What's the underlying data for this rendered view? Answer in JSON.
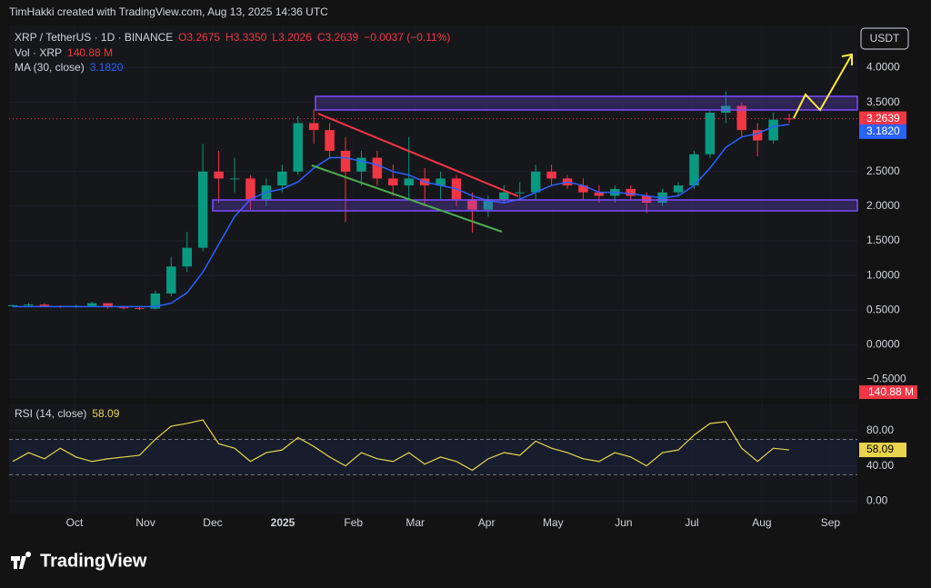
{
  "header": "TimHakki created with TradingView.com, Aug 13, 2025 14:36 UTC",
  "brand": "TradingView",
  "chart_data": [
    {
      "type": "candlestick",
      "title": "XRP / TetherUS · 1D · BINANCE",
      "ohlc_text": [
        "O3.2675",
        "H3.3350",
        "L3.2026",
        "C3.2639",
        "−0.0037 (−0.11%)"
      ],
      "volume_legend": {
        "name": "Vol · XRP",
        "label": "140.88 M"
      },
      "currency": "USDT",
      "categories": [
        null,
        null,
        null,
        null,
        null,
        null,
        null,
        null,
        null,
        null,
        null,
        null,
        null,
        null,
        null,
        null,
        null,
        null,
        null,
        null,
        null,
        null,
        null,
        null,
        null,
        null,
        null,
        null,
        null,
        null,
        null,
        null,
        null,
        null,
        null,
        null,
        null,
        null,
        null,
        null,
        null,
        null,
        null,
        null,
        null,
        null,
        null,
        null,
        null,
        null
      ],
      "xlim": [
        -0.23,
        53.3
      ],
      "xticks": [
        {
          "value": 3.9,
          "label": "Oct"
        },
        {
          "value": 8.38,
          "label": "Nov"
        },
        {
          "value": 12.62,
          "label": "Dec"
        },
        {
          "value": 17.04,
          "label": "2025"
        },
        {
          "value": 21.5,
          "label": "Feb"
        },
        {
          "value": 25.4,
          "label": "Mar"
        },
        {
          "value": 29.9,
          "label": "Apr"
        },
        {
          "value": 34.1,
          "label": "May"
        },
        {
          "value": 38.55,
          "label": "Jun"
        },
        {
          "value": 42.86,
          "label": "Jul"
        },
        {
          "value": 47.27,
          "label": "Aug"
        },
        {
          "value": 51.6,
          "label": "Sep"
        }
      ],
      "ylim": [
        -0.77,
        4.61
      ],
      "yticks": [
        {
          "value": -0.5,
          "label": "−0.5000"
        },
        {
          "value": 0,
          "label": "0.0000"
        },
        {
          "value": 0.5,
          "label": "0.5000"
        },
        {
          "value": 1,
          "label": "1.0000"
        },
        {
          "value": 1.5,
          "label": "1.5000"
        },
        {
          "value": 2,
          "label": "2.0000"
        },
        {
          "value": 2.5,
          "label": "2.5000"
        },
        {
          "value": 3.5,
          "label": "3.5000"
        },
        {
          "value": 4,
          "label": "4.0000"
        }
      ],
      "last_price": 3.2639,
      "series": [
        {
          "name": "XRP / TetherUS",
          "up_color": "#089981",
          "down_color": "#f23645",
          "open": [
            0.56,
            0.57,
            0.58,
            0.56,
            0.55,
            0.56,
            0.6,
            0.54,
            0.53,
            0.52,
            0.74,
            1.13,
            1.4,
            2.5,
            2.4,
            2.4,
            2.1,
            2.3,
            2.5,
            3.2,
            3.1,
            2.8,
            2.5,
            2.7,
            2.4,
            2.3,
            2.4,
            2.3,
            2.4,
            2.1,
            1.95,
            2.1,
            2.2,
            2.2,
            2.5,
            2.4,
            2.3,
            2.2,
            2.15,
            2.25,
            2.15,
            2.05,
            2.2,
            2.3,
            2.75,
            3.35,
            3.45,
            3.1,
            2.95,
            3.2675
          ],
          "high": [
            0.58,
            0.6,
            0.6,
            0.57,
            0.58,
            0.62,
            0.6,
            0.56,
            0.56,
            0.78,
            1.27,
            1.63,
            2.9,
            2.8,
            2.7,
            2.45,
            2.4,
            2.6,
            3.3,
            3.4,
            3.2,
            3.0,
            2.8,
            2.8,
            2.6,
            3.0,
            2.55,
            2.5,
            2.45,
            2.2,
            2.15,
            2.3,
            2.35,
            2.6,
            2.6,
            2.45,
            2.4,
            2.3,
            2.3,
            2.3,
            2.2,
            2.25,
            2.35,
            2.8,
            3.4,
            3.66,
            3.5,
            3.2,
            3.35,
            3.335
          ],
          "low": [
            0.54,
            0.56,
            0.55,
            0.53,
            0.53,
            0.55,
            0.52,
            0.51,
            0.5,
            0.51,
            0.7,
            1.05,
            1.35,
            2.05,
            2.2,
            1.95,
            2.0,
            2.2,
            2.45,
            2.9,
            2.7,
            1.77,
            2.3,
            2.3,
            2.15,
            2.1,
            2.0,
            2.1,
            2.0,
            1.62,
            1.85,
            2.05,
            2.1,
            2.1,
            2.3,
            2.25,
            2.1,
            2.05,
            2.05,
            2.1,
            1.9,
            2.0,
            2.15,
            2.25,
            2.7,
            3.2,
            3.0,
            2.72,
            2.9,
            3.2026
          ],
          "close": [
            0.57,
            0.58,
            0.56,
            0.55,
            0.56,
            0.6,
            0.54,
            0.53,
            0.52,
            0.74,
            1.13,
            1.4,
            2.5,
            2.4,
            2.4,
            2.1,
            2.3,
            2.5,
            3.2,
            3.1,
            2.8,
            2.5,
            2.7,
            2.4,
            2.3,
            2.4,
            2.3,
            2.4,
            2.1,
            1.95,
            2.1,
            2.2,
            2.2,
            2.5,
            2.4,
            2.3,
            2.2,
            2.15,
            2.25,
            2.15,
            2.05,
            2.2,
            2.3,
            2.75,
            3.35,
            3.45,
            3.1,
            2.95,
            3.25,
            3.2639
          ]
        },
        {
          "name": "MA (30, close)",
          "color": "#2962ff",
          "last": {
            "value": 3.182,
            "label": "3.1820"
          },
          "values": [
            0.55,
            0.55,
            0.55,
            0.55,
            0.55,
            0.55,
            0.55,
            0.55,
            0.55,
            0.55,
            0.6,
            0.75,
            1.05,
            1.45,
            1.85,
            2.1,
            2.2,
            2.25,
            2.35,
            2.55,
            2.7,
            2.7,
            2.65,
            2.6,
            2.5,
            2.45,
            2.35,
            2.3,
            2.25,
            2.15,
            2.08,
            2.05,
            2.1,
            2.2,
            2.3,
            2.35,
            2.3,
            2.2,
            2.2,
            2.18,
            2.15,
            2.12,
            2.15,
            2.3,
            2.55,
            2.85,
            3.0,
            3.05,
            3.15,
            3.182
          ]
        }
      ]
    },
    {
      "type": "line",
      "title": "RSI (14, close)",
      "ylim": [
        -14.9,
        110.6
      ],
      "yticks": [
        {
          "value": 0,
          "label": "0.00"
        },
        {
          "value": 40,
          "label": "40.00"
        },
        {
          "value": 80,
          "label": "80.00"
        }
      ],
      "bands": [
        30,
        70
      ],
      "series": [
        {
          "name": "RSI (14, close)",
          "color": "#e8d44d",
          "last": 58.09,
          "values": [
            45,
            55,
            48,
            60,
            50,
            45,
            48,
            50,
            52,
            70,
            85,
            88,
            92,
            65,
            60,
            45,
            55,
            58,
            72,
            62,
            50,
            40,
            55,
            48,
            45,
            55,
            42,
            50,
            45,
            35,
            48,
            55,
            52,
            68,
            60,
            55,
            48,
            45,
            55,
            50,
            40,
            55,
            58,
            75,
            88,
            90,
            60,
            45,
            60,
            58.09
          ]
        }
      ]
    }
  ]
}
